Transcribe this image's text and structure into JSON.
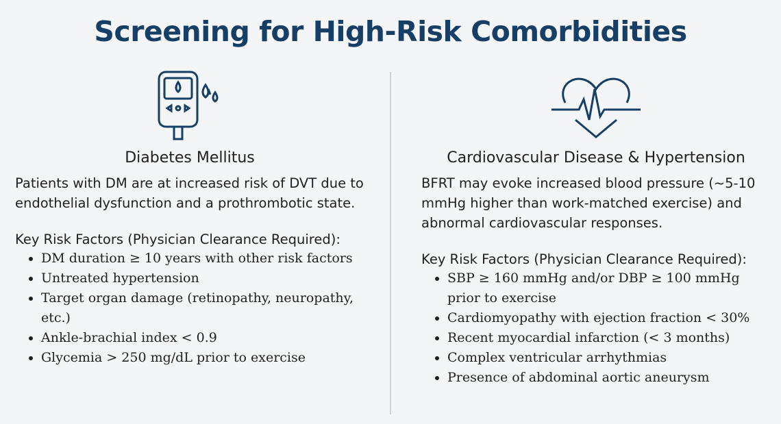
{
  "header": {
    "title": "Screening for High-Risk Comorbidities"
  },
  "columns": [
    {
      "heading": "Diabetes Mellitus",
      "description": "Patients with DM are at increased risk of DVT due to endothelial dysfunction and a prothrombotic state.",
      "list_title": "Key Risk Factors (Physician Clearance Required):",
      "items": [
        "DM duration ≥ 10 years with other risk factors",
        "Untreated hypertension",
        "Target organ damage (retinopathy, neuropathy, etc.)",
        "Ankle-brachial index < 0.9",
        "Glycemia > 250 mg/dL prior to exercise"
      ]
    },
    {
      "heading": "Cardiovascular Disease & Hypertension",
      "description": "BFRT may evoke increased blood pressure (~5-10 mmHg higher than work-matched exercise) and abnormal cardiovascular responses.",
      "list_title": "Key Risk Factors (Physician Clearance Required):",
      "items": [
        "SBP ≥ 160 mmHg and/or DBP ≥ 100 mmHg prior to exercise",
        "Cardiomyopathy with ejection fraction < 30%",
        "Recent myocardial infarction (< 3 months)",
        "Complex ventricular arrhythmias",
        "Presence of abdominal aortic aneurysm"
      ]
    }
  ]
}
